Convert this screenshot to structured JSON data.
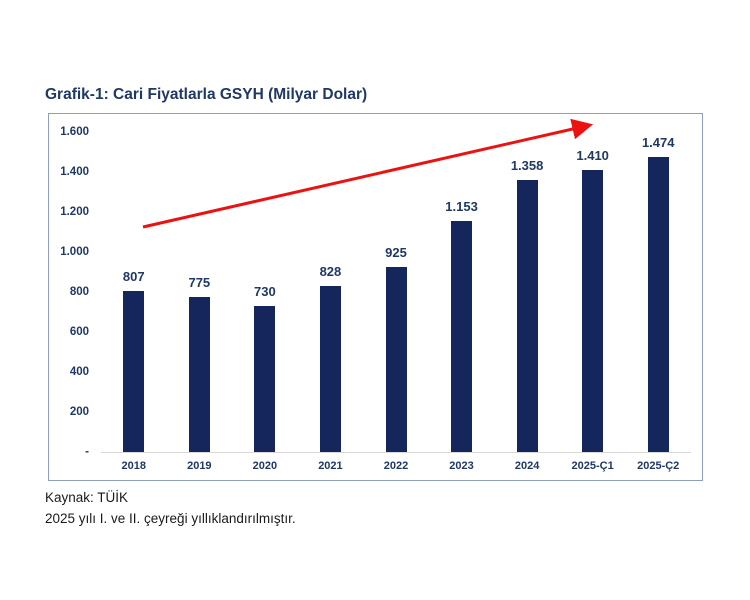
{
  "chart_data": {
    "type": "bar",
    "title": "Grafik-1: Cari Fiyatlarla GSYH (Milyar Dolar)",
    "categories": [
      "2018",
      "2019",
      "2020",
      "2021",
      "2022",
      "2023",
      "2024",
      "2025-Ç1",
      "2025-Ç2"
    ],
    "values": [
      807,
      775,
      730,
      828,
      925,
      1153,
      1358,
      1410,
      1474
    ],
    "value_labels": [
      "807",
      "775",
      "730",
      "828",
      "925",
      "1.153",
      "1.358",
      "1.410",
      "1.474"
    ],
    "xlabel": "",
    "ylabel": "",
    "ylim": [
      0,
      1600
    ],
    "y_tick_step": 200,
    "y_ticks": [
      "1.600",
      "1.400",
      "1.200",
      "1.000",
      "800",
      "600",
      "400",
      "200",
      "-"
    ],
    "grid": false,
    "legend": false,
    "bar_color": "#14265C",
    "label_color": "#1F3864",
    "tick_color": "#1F3864",
    "border_color": "#8C9FC2",
    "axis_line_color": "#D9D9D9",
    "annotation": {
      "type": "trend-arrow",
      "description": "red straight arrow rising from above 2018 bar to upper right corner",
      "color": "#EC1212"
    }
  },
  "footer": {
    "source": "Kaynak: TÜİK",
    "note": "2025 yılı I. ve II. çeyreği yıllıklandırılmıştır."
  }
}
